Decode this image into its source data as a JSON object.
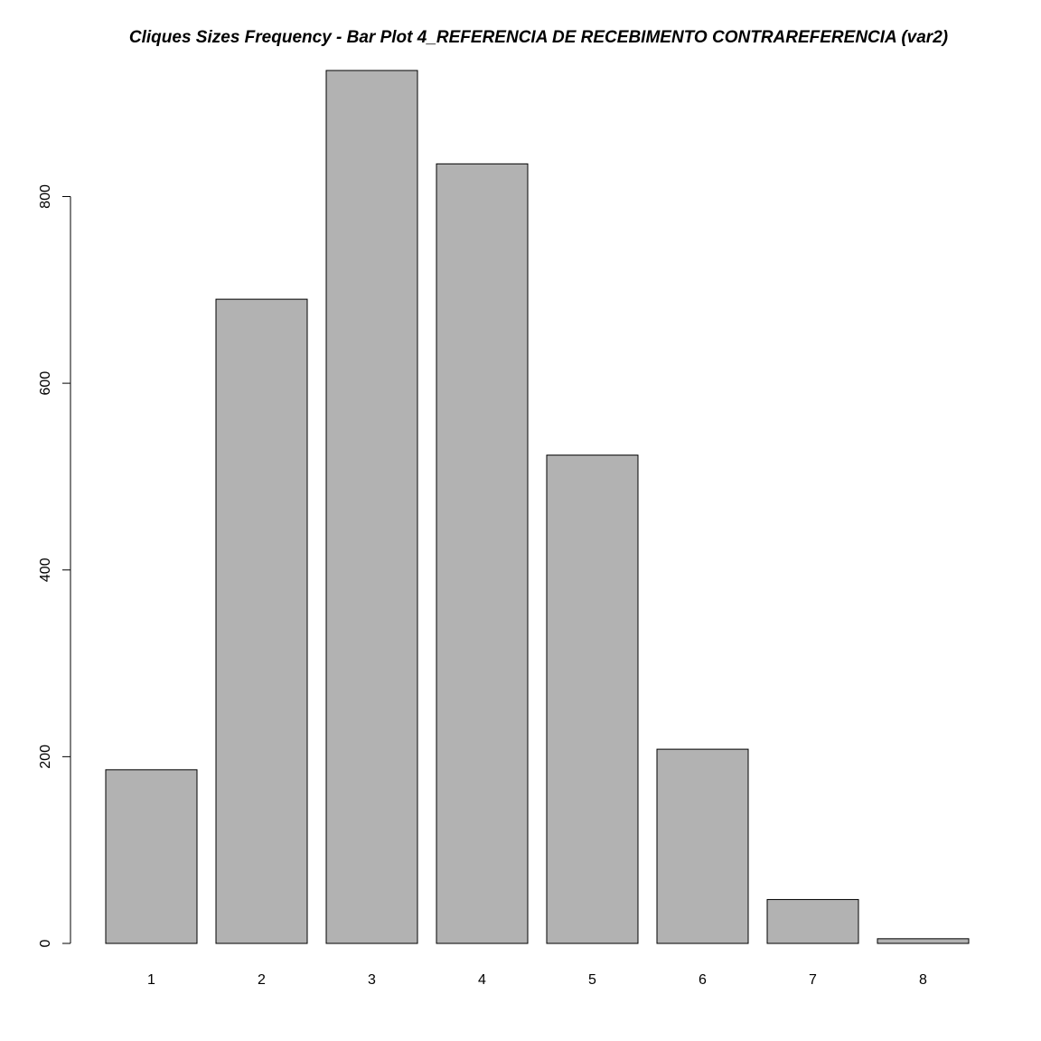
{
  "chart_data": {
    "type": "bar",
    "title": "Cliques Sizes Frequency - Bar Plot 4_REFERENCIA DE RECEBIMENTO CONTRAREFERENCIA (var2)",
    "xlabel": "",
    "ylabel": "",
    "categories": [
      "1",
      "2",
      "3",
      "4",
      "5",
      "6",
      "7",
      "8"
    ],
    "values": [
      186,
      690,
      935,
      835,
      523,
      208,
      47,
      5
    ],
    "ylim": [
      0,
      935
    ],
    "yticks": [
      0,
      200,
      400,
      600,
      800
    ],
    "grid": false,
    "legend": "none",
    "bar_color": "#b2b2b2",
    "bar_border_color": "#000000"
  }
}
